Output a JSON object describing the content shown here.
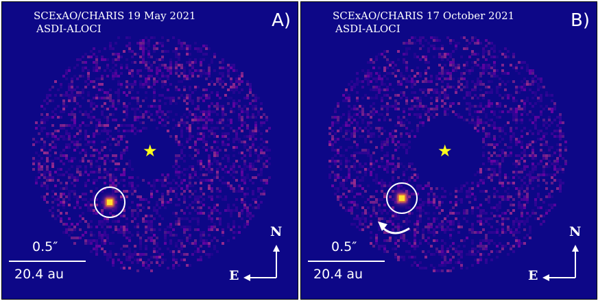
{
  "panels": [
    {
      "title_line1": "SCExAO/CHARIS 19 May 2021",
      "title_line2": "ASDI-ALOCI",
      "letter": "A)",
      "scale_angle": "0.5″",
      "scale_distance": "20.4 au",
      "compass_north": "N",
      "compass_east": "E",
      "star_glyph": "★",
      "has_motion_arrow": false
    },
    {
      "title_line1": "SCExAO/CHARIS 17 October 2021",
      "title_line2": "ASDI-ALOCI",
      "letter": "B)",
      "scale_angle": "0.5″",
      "scale_distance": "20.4 au",
      "compass_north": "N",
      "compass_east": "E",
      "star_glyph": "★",
      "has_motion_arrow": true
    }
  ],
  "colors": {
    "background": "#0d0787",
    "star": "#ffff1a",
    "planet_core": "#ffe030",
    "speckle_dim": "#3b049a",
    "speckle_mid": "#7a02a8",
    "speckle_bright": "#b0308f",
    "annotation": "#ffffff"
  }
}
